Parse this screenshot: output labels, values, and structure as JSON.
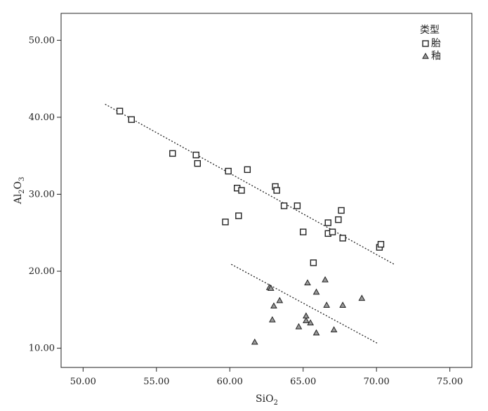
{
  "chart_data": {
    "type": "scatter",
    "title": "",
    "xlabel": {
      "main": "SiO",
      "sub": "2"
    },
    "ylabel": {
      "parts": [
        {
          "t": "Al",
          "sub": false
        },
        {
          "t": "2",
          "sub": true
        },
        {
          "t": "O",
          "sub": false
        },
        {
          "t": "3",
          "sub": true
        }
      ]
    },
    "xlim": [
      48.5,
      76.5
    ],
    "ylim": [
      7.5,
      53.5
    ],
    "x_ticks": [
      50,
      55,
      60,
      65,
      70,
      75
    ],
    "x_tick_labels": [
      "50.00",
      "55.00",
      "60.00",
      "65.00",
      "70.00",
      "75.00"
    ],
    "y_ticks": [
      10,
      20,
      30,
      40,
      50
    ],
    "y_tick_labels": [
      "10.00",
      "20.00",
      "30.00",
      "40.00",
      "50.00"
    ],
    "grid": false,
    "legend": {
      "title": "类型",
      "placement": "top-right",
      "entries": [
        {
          "label": "胎",
          "marker": "square"
        },
        {
          "label": "釉",
          "marker": "triangle"
        }
      ]
    },
    "series": [
      {
        "name": "胎",
        "marker": "square",
        "points": [
          [
            52.5,
            40.8
          ],
          [
            53.3,
            39.7
          ],
          [
            56.1,
            35.3
          ],
          [
            57.7,
            35.1
          ],
          [
            57.8,
            34.0
          ],
          [
            59.7,
            26.4
          ],
          [
            59.9,
            33.0
          ],
          [
            60.5,
            30.8
          ],
          [
            60.6,
            27.2
          ],
          [
            60.8,
            30.5
          ],
          [
            61.2,
            33.2
          ],
          [
            63.1,
            31.0
          ],
          [
            63.2,
            30.5
          ],
          [
            63.7,
            28.5
          ],
          [
            64.6,
            28.5
          ],
          [
            65.0,
            25.1
          ],
          [
            66.7,
            26.3
          ],
          [
            66.7,
            24.9
          ],
          [
            67.0,
            25.1
          ],
          [
            67.4,
            26.7
          ],
          [
            67.6,
            27.9
          ],
          [
            67.7,
            24.3
          ],
          [
            70.2,
            23.1
          ],
          [
            70.3,
            23.5
          ],
          [
            65.7,
            21.1
          ]
        ],
        "trendline": [
          [
            51.5,
            41.7
          ],
          [
            71.2,
            20.9
          ]
        ]
      },
      {
        "name": "釉",
        "marker": "triangle",
        "points": [
          [
            61.7,
            10.8
          ],
          [
            62.7,
            17.9
          ],
          [
            62.9,
            13.7
          ],
          [
            63.0,
            15.5
          ],
          [
            63.4,
            16.2
          ],
          [
            64.7,
            12.8
          ],
          [
            65.2,
            13.6
          ],
          [
            65.2,
            14.2
          ],
          [
            65.3,
            18.5
          ],
          [
            65.5,
            13.3
          ],
          [
            65.9,
            17.3
          ],
          [
            65.9,
            12.0
          ],
          [
            66.5,
            18.9
          ],
          [
            66.6,
            15.6
          ],
          [
            67.1,
            12.4
          ],
          [
            67.7,
            15.6
          ],
          [
            69.0,
            16.5
          ],
          [
            62.8,
            17.8
          ]
        ],
        "trendline": [
          [
            60.1,
            20.9
          ],
          [
            70.1,
            10.6
          ]
        ]
      }
    ]
  }
}
